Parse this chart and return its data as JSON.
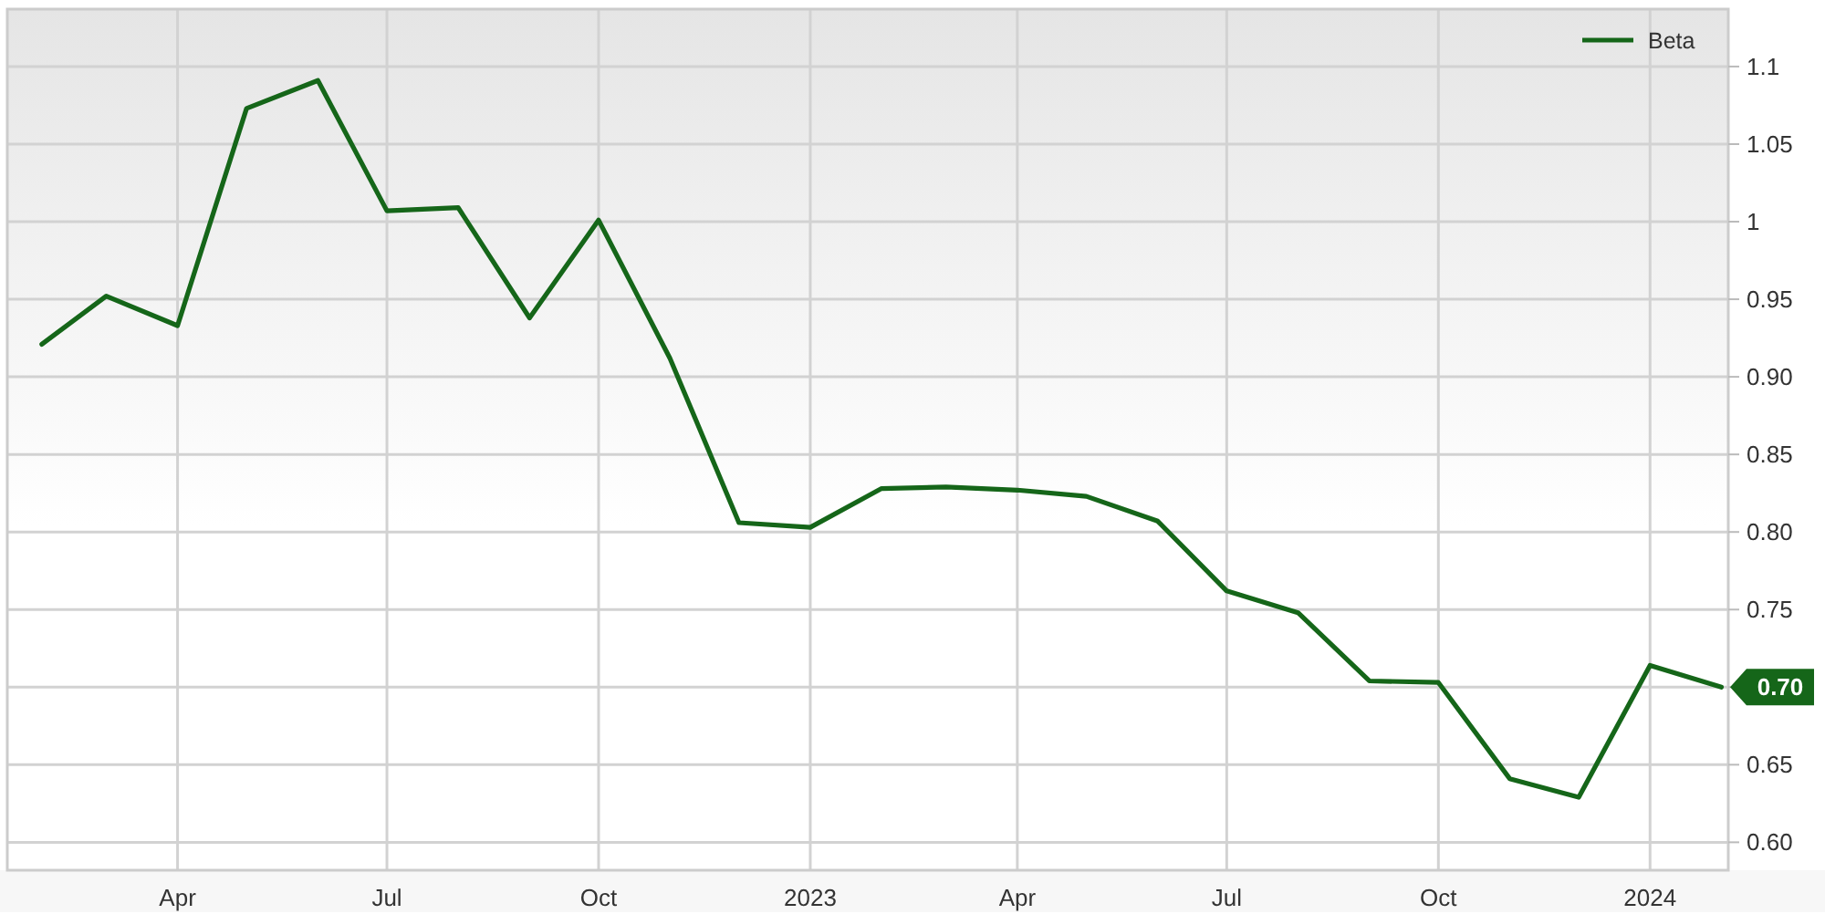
{
  "chart_data": {
    "type": "line",
    "x": [
      "2022-02",
      "2022-03",
      "2022-04",
      "2022-05",
      "2022-06",
      "2022-07",
      "2022-08",
      "2022-09",
      "2022-10",
      "2022-11",
      "2022-12",
      "2023-01",
      "2023-02",
      "2023-03",
      "2023-04",
      "2023-05",
      "2023-06",
      "2023-07",
      "2023-08",
      "2023-09",
      "2023-10",
      "2023-11",
      "2023-12",
      "2024-01",
      "2024-02"
    ],
    "series": [
      {
        "name": "Beta",
        "color": "#156619",
        "values": [
          0.921,
          0.952,
          0.933,
          1.073,
          1.091,
          1.007,
          1.009,
          0.938,
          1.001,
          0.912,
          0.806,
          0.803,
          0.828,
          0.829,
          0.827,
          0.823,
          0.807,
          0.762,
          0.748,
          0.704,
          0.703,
          0.641,
          0.629,
          0.714,
          0.7
        ],
        "value_labels": [
          null,
          null,
          null,
          null,
          null,
          null,
          null,
          null,
          null,
          null,
          null,
          null,
          null,
          null,
          null,
          null,
          null,
          null,
          null,
          null,
          null,
          null,
          null,
          null,
          "0.70"
        ]
      }
    ],
    "xlim": [
      "2022-01-17",
      "2024-02-04"
    ],
    "xticks": [
      {
        "value": "2022-04",
        "label": "Apr"
      },
      {
        "value": "2022-07",
        "label": "Jul"
      },
      {
        "value": "2022-10",
        "label": "Oct"
      },
      {
        "value": "2023-01",
        "label": "2023"
      },
      {
        "value": "2023-04",
        "label": "Apr"
      },
      {
        "value": "2023-07",
        "label": "Jul"
      },
      {
        "value": "2023-10",
        "label": "Oct"
      },
      {
        "value": "2024-01",
        "label": "2024"
      }
    ],
    "ylim": [
      0.582,
      1.137
    ],
    "yticks": [
      {
        "value": 0.6,
        "label": "0.60"
      },
      0.65,
      {
        "value": 0.7,
        "label": null
      },
      0.75,
      {
        "value": 0.8,
        "label": "0.80"
      },
      0.85,
      {
        "value": 0.9,
        "label": "0.90"
      },
      0.95,
      1,
      1.05,
      1.1
    ],
    "grid": true,
    "legend": "top right"
  }
}
